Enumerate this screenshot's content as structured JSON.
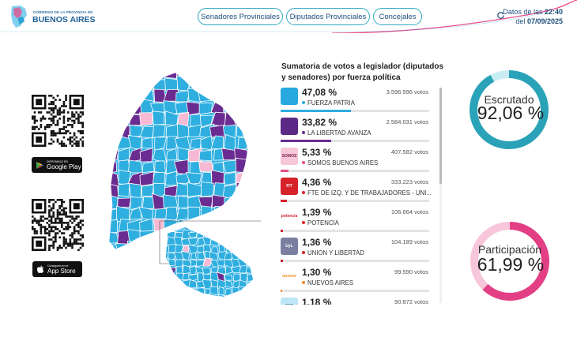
{
  "header": {
    "logo_government": "GOBIERNO DE LA PROVINCIA DE",
    "logo_name": "BUENOS AIRES",
    "tabs": [
      {
        "label": "Senadores Provinciales"
      },
      {
        "label": "Diputados Provinciales"
      },
      {
        "label": "Concejales"
      }
    ],
    "update_prefix": "Datos de las",
    "update_time": "22:40",
    "update_date_prefix": "del",
    "update_date": "07/09/2025"
  },
  "apps": {
    "google_play_small": "DISPONIBLE EN",
    "google_play": "Google Play",
    "app_store_small": "Consíguelo en el",
    "app_store": "App Store"
  },
  "panel": {
    "title": "Sumatoria de votos a legislador (diputados y senadores) por fuerza política",
    "parties": [
      {
        "pct": "47,08 %",
        "votes": "3.596.596 votos",
        "name": "FUERZA PATRIA",
        "share": 47.08,
        "color": "#2faee0",
        "logo_bg": "#27a8df",
        "logo_text": ""
      },
      {
        "pct": "33,82 %",
        "votes": "2.584.031 votos",
        "name": "LA LIBERTAD AVANZA",
        "share": 33.82,
        "color": "#6a2c91",
        "logo_bg": "#5b2a86",
        "logo_text": ""
      },
      {
        "pct": "5,33 %",
        "votes": "407.582 votos",
        "name": "SOMOS BUENOS AIRES",
        "share": 5.33,
        "color": "#e94d8b",
        "logo_bg": "#f7c7d9",
        "logo_text": "SOMOS"
      },
      {
        "pct": "4,36 %",
        "votes": "333.223 votos",
        "name": "FTE DE IZQ. Y DE TRABAJADORES - UNI...",
        "share": 4.36,
        "color": "#d7212b",
        "logo_bg": "#d7212b",
        "logo_text": "FIT"
      },
      {
        "pct": "1,39 %",
        "votes": "106.664 votos",
        "name": "POTENCIA",
        "share": 1.39,
        "color": "#d7212b",
        "logo_bg": "#ffffff",
        "logo_text": "potencia"
      },
      {
        "pct": "1,36 %",
        "votes": "104.189 votos",
        "name": "UNION Y LIBERTAD",
        "share": 1.36,
        "color": "#d7212b",
        "logo_bg": "#7a7fa0",
        "logo_text": "UyL"
      },
      {
        "pct": "1,30 %",
        "votes": "99.590 votos",
        "name": "NUEVOS AIRES",
        "share": 1.3,
        "color": "#f28c28",
        "logo_bg": "#ffffff",
        "logo_text": "nuevos"
      },
      {
        "pct": "1,18 %",
        "votes": "90.872 votos",
        "name": "",
        "share": 1.18,
        "color": "#2faee0",
        "logo_bg": "#bfe6f5",
        "logo_text": "ESP"
      }
    ]
  },
  "gauges": {
    "escrutado": {
      "label": "Escrutado",
      "value": "92,06 %",
      "fraction": 0.9206,
      "color": "#2aa3b8",
      "track": "#c9edf2"
    },
    "participacion": {
      "label": "Participación",
      "value": "61,99 %",
      "fraction": 0.6199,
      "color": "#e23f85",
      "track": "#f8c6da"
    }
  }
}
